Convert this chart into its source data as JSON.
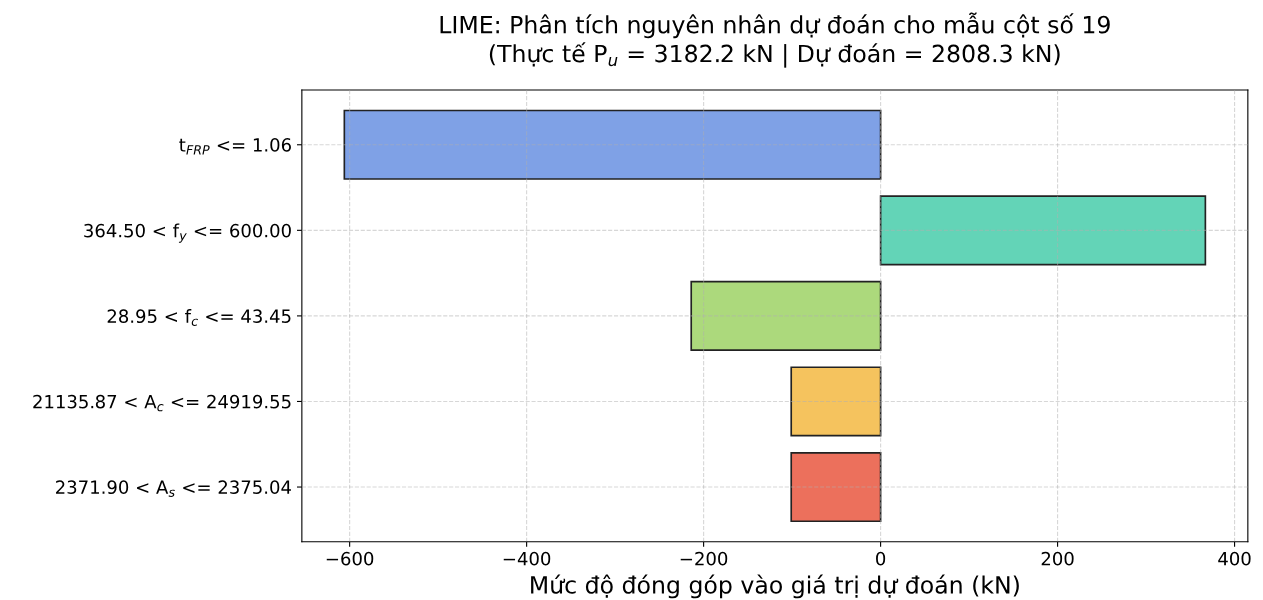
{
  "chart_data": {
    "type": "bar",
    "orientation": "horizontal",
    "title": "LIME: Phân tích nguyên nhân dự đoán cho mẫu cột số 19\n(Thực tế P$_{u}$ = 3182.2 kN | Dự đoán = 2808.3 kN)",
    "xlabel": "Mức độ đóng góp vào giá trị dự đoán (kN)",
    "categories": [
      "t$_{FRP}$ <= 1.06",
      "364.50 < f$_{y}$ <= 600.00",
      "28.95 < f$_{c}$ <= 43.45",
      "21135.87 < A$_{c}$ <= 24919.55",
      "2371.90 < A$_{s}$ <= 2375.04"
    ],
    "values": [
      -606,
      367,
      -214,
      -101,
      -101
    ],
    "colors": [
      "#7fa1e6",
      "#63d4b7",
      "#acd97c",
      "#f5c35e",
      "#ec705c"
    ],
    "xlim": [
      -654,
      415
    ],
    "xticks": [
      -600,
      -400,
      -200,
      0,
      200,
      400
    ],
    "grid": true
  }
}
